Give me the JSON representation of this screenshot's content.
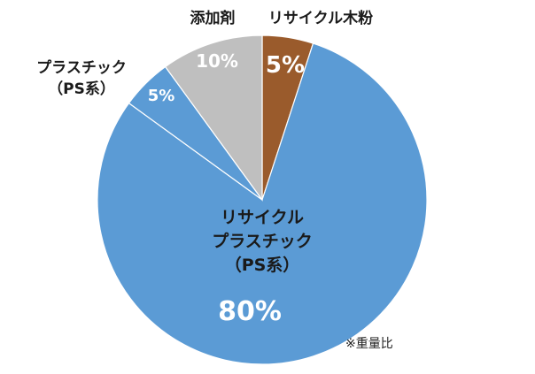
{
  "chart_data": {
    "type": "pie",
    "start_angle_deg": 0,
    "direction": "clockwise",
    "slices": [
      {
        "label_lines": [
          "リサイクル木粉"
        ],
        "value": 5,
        "value_label": "5%",
        "color": "#9a5b2c"
      },
      {
        "label_lines": [
          "リサイクル",
          "プラスチック",
          "（PS系）"
        ],
        "value": 80,
        "value_label": "80%",
        "color": "#5b9bd5"
      },
      {
        "label_lines": [
          "プラスチック",
          "（PS系）"
        ],
        "value": 5,
        "value_label": "5%",
        "color": "#5b9bd5"
      },
      {
        "label_lines": [
          "添加剤"
        ],
        "value": 10,
        "value_label": "10%",
        "color": "#bfbfbf"
      }
    ],
    "separator_color": "#ffffff"
  },
  "note": "※重量比"
}
